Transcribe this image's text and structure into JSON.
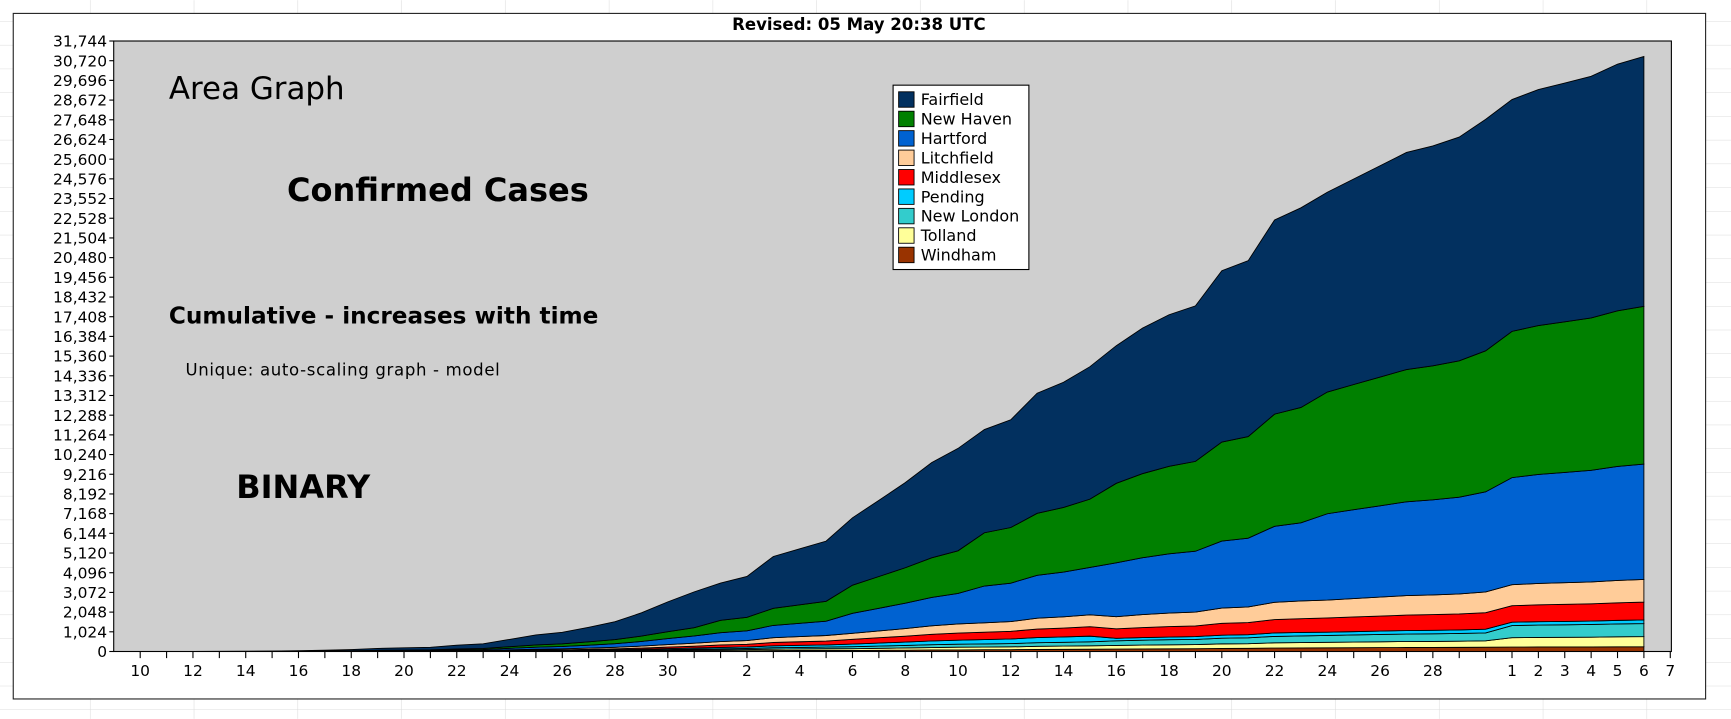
{
  "chart_data": {
    "type": "stacked_area",
    "title": "Revised: 05 May 20:38 UTC",
    "annotations": [
      "Area Graph",
      "Confirmed Cases",
      "Cumulative - increases with time",
      "Unique: auto-scaling graph - model",
      "BINARY"
    ],
    "categories": [
      "10",
      null,
      "12",
      null,
      "14",
      null,
      "16",
      null,
      "18",
      null,
      "20",
      null,
      "22",
      null,
      "24",
      null,
      "26",
      null,
      "28",
      null,
      "30",
      null,
      null,
      "2",
      null,
      "4",
      null,
      "6",
      null,
      "8",
      null,
      "10",
      null,
      "12",
      null,
      "14",
      null,
      "16",
      null,
      "18",
      null,
      "20",
      null,
      "22",
      null,
      "24",
      null,
      "26",
      null,
      "28",
      null,
      null,
      "1",
      "2",
      "3",
      "4",
      "5",
      "6",
      "7"
    ],
    "ylim": [
      0,
      31744
    ],
    "yticks": [
      0,
      {
        "value": 1024,
        "label": "1,024"
      },
      {
        "value": 2048,
        "label": "2,048"
      },
      {
        "value": 3072,
        "label": "3,072"
      },
      {
        "value": 4096,
        "label": "4,096"
      },
      {
        "value": 5120,
        "label": "5,120"
      },
      {
        "value": 6144,
        "label": "6,144"
      },
      {
        "value": 7168,
        "label": "7,168"
      },
      {
        "value": 8192,
        "label": "8,192"
      },
      {
        "value": 9216,
        "label": "9,216"
      },
      {
        "value": 10240,
        "label": "10,240"
      },
      {
        "value": 11264,
        "label": "11,264"
      },
      {
        "value": 12288,
        "label": "12,288"
      },
      {
        "value": 13312,
        "label": "13,312"
      },
      {
        "value": 14336,
        "label": "14,336"
      },
      {
        "value": 15360,
        "label": "15,360"
      },
      {
        "value": 16384,
        "label": "16,384"
      },
      {
        "value": 17408,
        "label": "17,408"
      },
      {
        "value": 18432,
        "label": "18,432"
      },
      {
        "value": 19456,
        "label": "19,456"
      },
      {
        "value": 20480,
        "label": "20,480"
      },
      {
        "value": 21504,
        "label": "21,504"
      },
      {
        "value": 22528,
        "label": "22,528"
      },
      {
        "value": 23552,
        "label": "23,552"
      },
      {
        "value": 24576,
        "label": "24,576"
      },
      {
        "value": 25600,
        "label": "25,600"
      },
      {
        "value": 26624,
        "label": "26,624"
      },
      {
        "value": 27648,
        "label": "27,648"
      },
      {
        "value": 28672,
        "label": "28,672"
      },
      {
        "value": 29696,
        "label": "29,696"
      },
      {
        "value": 30720,
        "label": "30,720"
      },
      {
        "value": 31744,
        "label": "31,744"
      }
    ],
    "grid": false,
    "series": [
      {
        "name": "Fairfield",
        "color": "#02305f",
        "values": [
          1,
          3,
          3,
          6,
          9,
          14,
          24,
          39,
          60,
          96,
          114,
          132,
          198,
          240,
          378,
          516,
          600,
          756,
          930,
          1206,
          1548,
          1860,
          1940,
          2126,
          2692,
          2910,
          3128,
          3503,
          3961,
          4425,
          4949,
          5322,
          5366,
          5603,
          6245,
          6510,
          6887,
          7155,
          7569,
          7880,
          8087,
          8910,
          9144,
          10098,
          10382,
          10388,
          10688,
          10988,
          11288,
          11436,
          11636,
          12036,
          12054,
          12272,
          12415,
          12562,
          12827,
          12995,
          null
        ]
      },
      {
        "name": "New Haven",
        "color": "#008000",
        "values": [
          0,
          1,
          1,
          1,
          2,
          3,
          6,
          9,
          14,
          22,
          27,
          31,
          46,
          56,
          88,
          120,
          140,
          176,
          217,
          281,
          361,
          434,
          641,
          702,
          889,
          961,
          1033,
          1460,
          1651,
          1844,
          2062,
          2218,
          2770,
          2892,
          3223,
          3360,
          3554,
          4134,
          4373,
          4553,
          4672,
          5148,
          5283,
          5834,
          5998,
          6328,
          6511,
          6694,
          6877,
          6967,
          7089,
          7333,
          7606,
          7743,
          7833,
          7926,
          8093,
          8199,
          null
        ]
      },
      {
        "name": "Hartford",
        "color": "#0062d1",
        "values": [
          1,
          1,
          1,
          1,
          2,
          3,
          5,
          8,
          12,
          19,
          23,
          26,
          40,
          48,
          76,
          103,
          120,
          151,
          186,
          241,
          310,
          372,
          463,
          507,
          642,
          694,
          746,
          1043,
          1179,
          1317,
          1473,
          1584,
          1916,
          2000,
          2229,
          2324,
          2458,
          2798,
          2960,
          3082,
          3163,
          3485,
          3576,
          3949,
          4060,
          4489,
          4619,
          4749,
          4879,
          4943,
          5029,
          5202,
          5568,
          5669,
          5735,
          5803,
          5925,
          6002,
          null
        ]
      },
      {
        "name": "Litchfield",
        "color": "#ffcc99",
        "values": [
          0,
          0,
          0,
          1,
          1,
          1,
          2,
          3,
          5,
          8,
          10,
          11,
          17,
          20,
          32,
          43,
          50,
          63,
          78,
          101,
          129,
          155,
          178,
          195,
          247,
          267,
          287,
          313,
          354,
          395,
          442,
          475,
          485,
          506,
          564,
          588,
          622,
          636,
          673,
          700,
          719,
          792,
          813,
          898,
          923,
          931,
          958,
          985,
          1012,
          1025,
          1043,
          1079,
          1091,
          1110,
          1123,
          1137,
          1161,
          1176,
          null
        ]
      },
      {
        "name": "Middlesex",
        "color": "#ff0000",
        "values": [
          0,
          0,
          0,
          1,
          1,
          1,
          1,
          2,
          3,
          5,
          6,
          7,
          10,
          12,
          19,
          26,
          30,
          38,
          47,
          60,
          77,
          93,
          125,
          137,
          173,
          187,
          201,
          243,
          275,
          307,
          344,
          370,
          381,
          398,
          443,
          462,
          489,
          493,
          521,
          543,
          557,
          614,
          630,
          696,
          715,
          740,
          762,
          783,
          804,
          815,
          829,
          858,
          861,
          877,
          887,
          897,
          916,
          928,
          null
        ]
      },
      {
        "name": "Pending",
        "color": "#00ccff",
        "values": [
          0,
          0,
          0,
          0,
          0,
          1,
          1,
          1,
          2,
          3,
          4,
          4,
          7,
          8,
          13,
          17,
          20,
          25,
          31,
          40,
          52,
          62,
          71,
          78,
          99,
          107,
          115,
          139,
          157,
          176,
          196,
          211,
          231,
          241,
          269,
          280,
          296,
          127,
          135,
          140,
          144,
          158,
          163,
          180,
          185,
          167,
          172,
          177,
          182,
          184,
          187,
          194,
          172,
          175,
          177,
          179,
          183,
          186,
          null
        ]
      },
      {
        "name": "New London",
        "color": "#33cccc",
        "values": [
          0,
          0,
          0,
          0,
          0,
          0,
          0,
          1,
          2,
          3,
          3,
          3,
          5,
          6,
          9,
          13,
          15,
          19,
          23,
          30,
          39,
          46,
          53,
          59,
          74,
          80,
          86,
          104,
          118,
          132,
          147,
          158,
          162,
          169,
          188,
          196,
          207,
          239,
          252,
          263,
          270,
          297,
          305,
          337,
          346,
          358,
          369,
          379,
          389,
          394,
          401,
          415,
          631,
          643,
          650,
          658,
          672,
          681,
          null
        ]
      },
      {
        "name": "Tolland",
        "color": "#ffff99",
        "values": [
          0,
          0,
          0,
          0,
          0,
          1,
          1,
          1,
          1,
          2,
          2,
          4,
          4,
          6,
          9,
          13,
          15,
          19,
          23,
          30,
          38,
          47,
          53,
          59,
          74,
          80,
          86,
          90,
          102,
          114,
          128,
          137,
          138,
          145,
          161,
          168,
          178,
          191,
          202,
          210,
          216,
          238,
          244,
          269,
          277,
          287,
          295,
          303,
          311,
          315,
          321,
          332,
          488,
          497,
          503,
          508,
          519,
          526,
          null
        ]
      },
      {
        "name": "Windham",
        "color": "#993300",
        "values": [
          0,
          0,
          0,
          0,
          0,
          0,
          0,
          1,
          1,
          2,
          2,
          2,
          3,
          4,
          6,
          9,
          10,
          13,
          15,
          21,
          26,
          31,
          36,
          39,
          49,
          53,
          57,
          56,
          63,
          70,
          79,
          84,
          92,
          96,
          107,
          112,
          118,
          127,
          135,
          140,
          144,
          158,
          163,
          180,
          185,
          191,
          197,
          202,
          208,
          210,
          214,
          221,
          230,
          234,
          236,
          239,
          244,
          248,
          null
        ]
      }
    ]
  }
}
